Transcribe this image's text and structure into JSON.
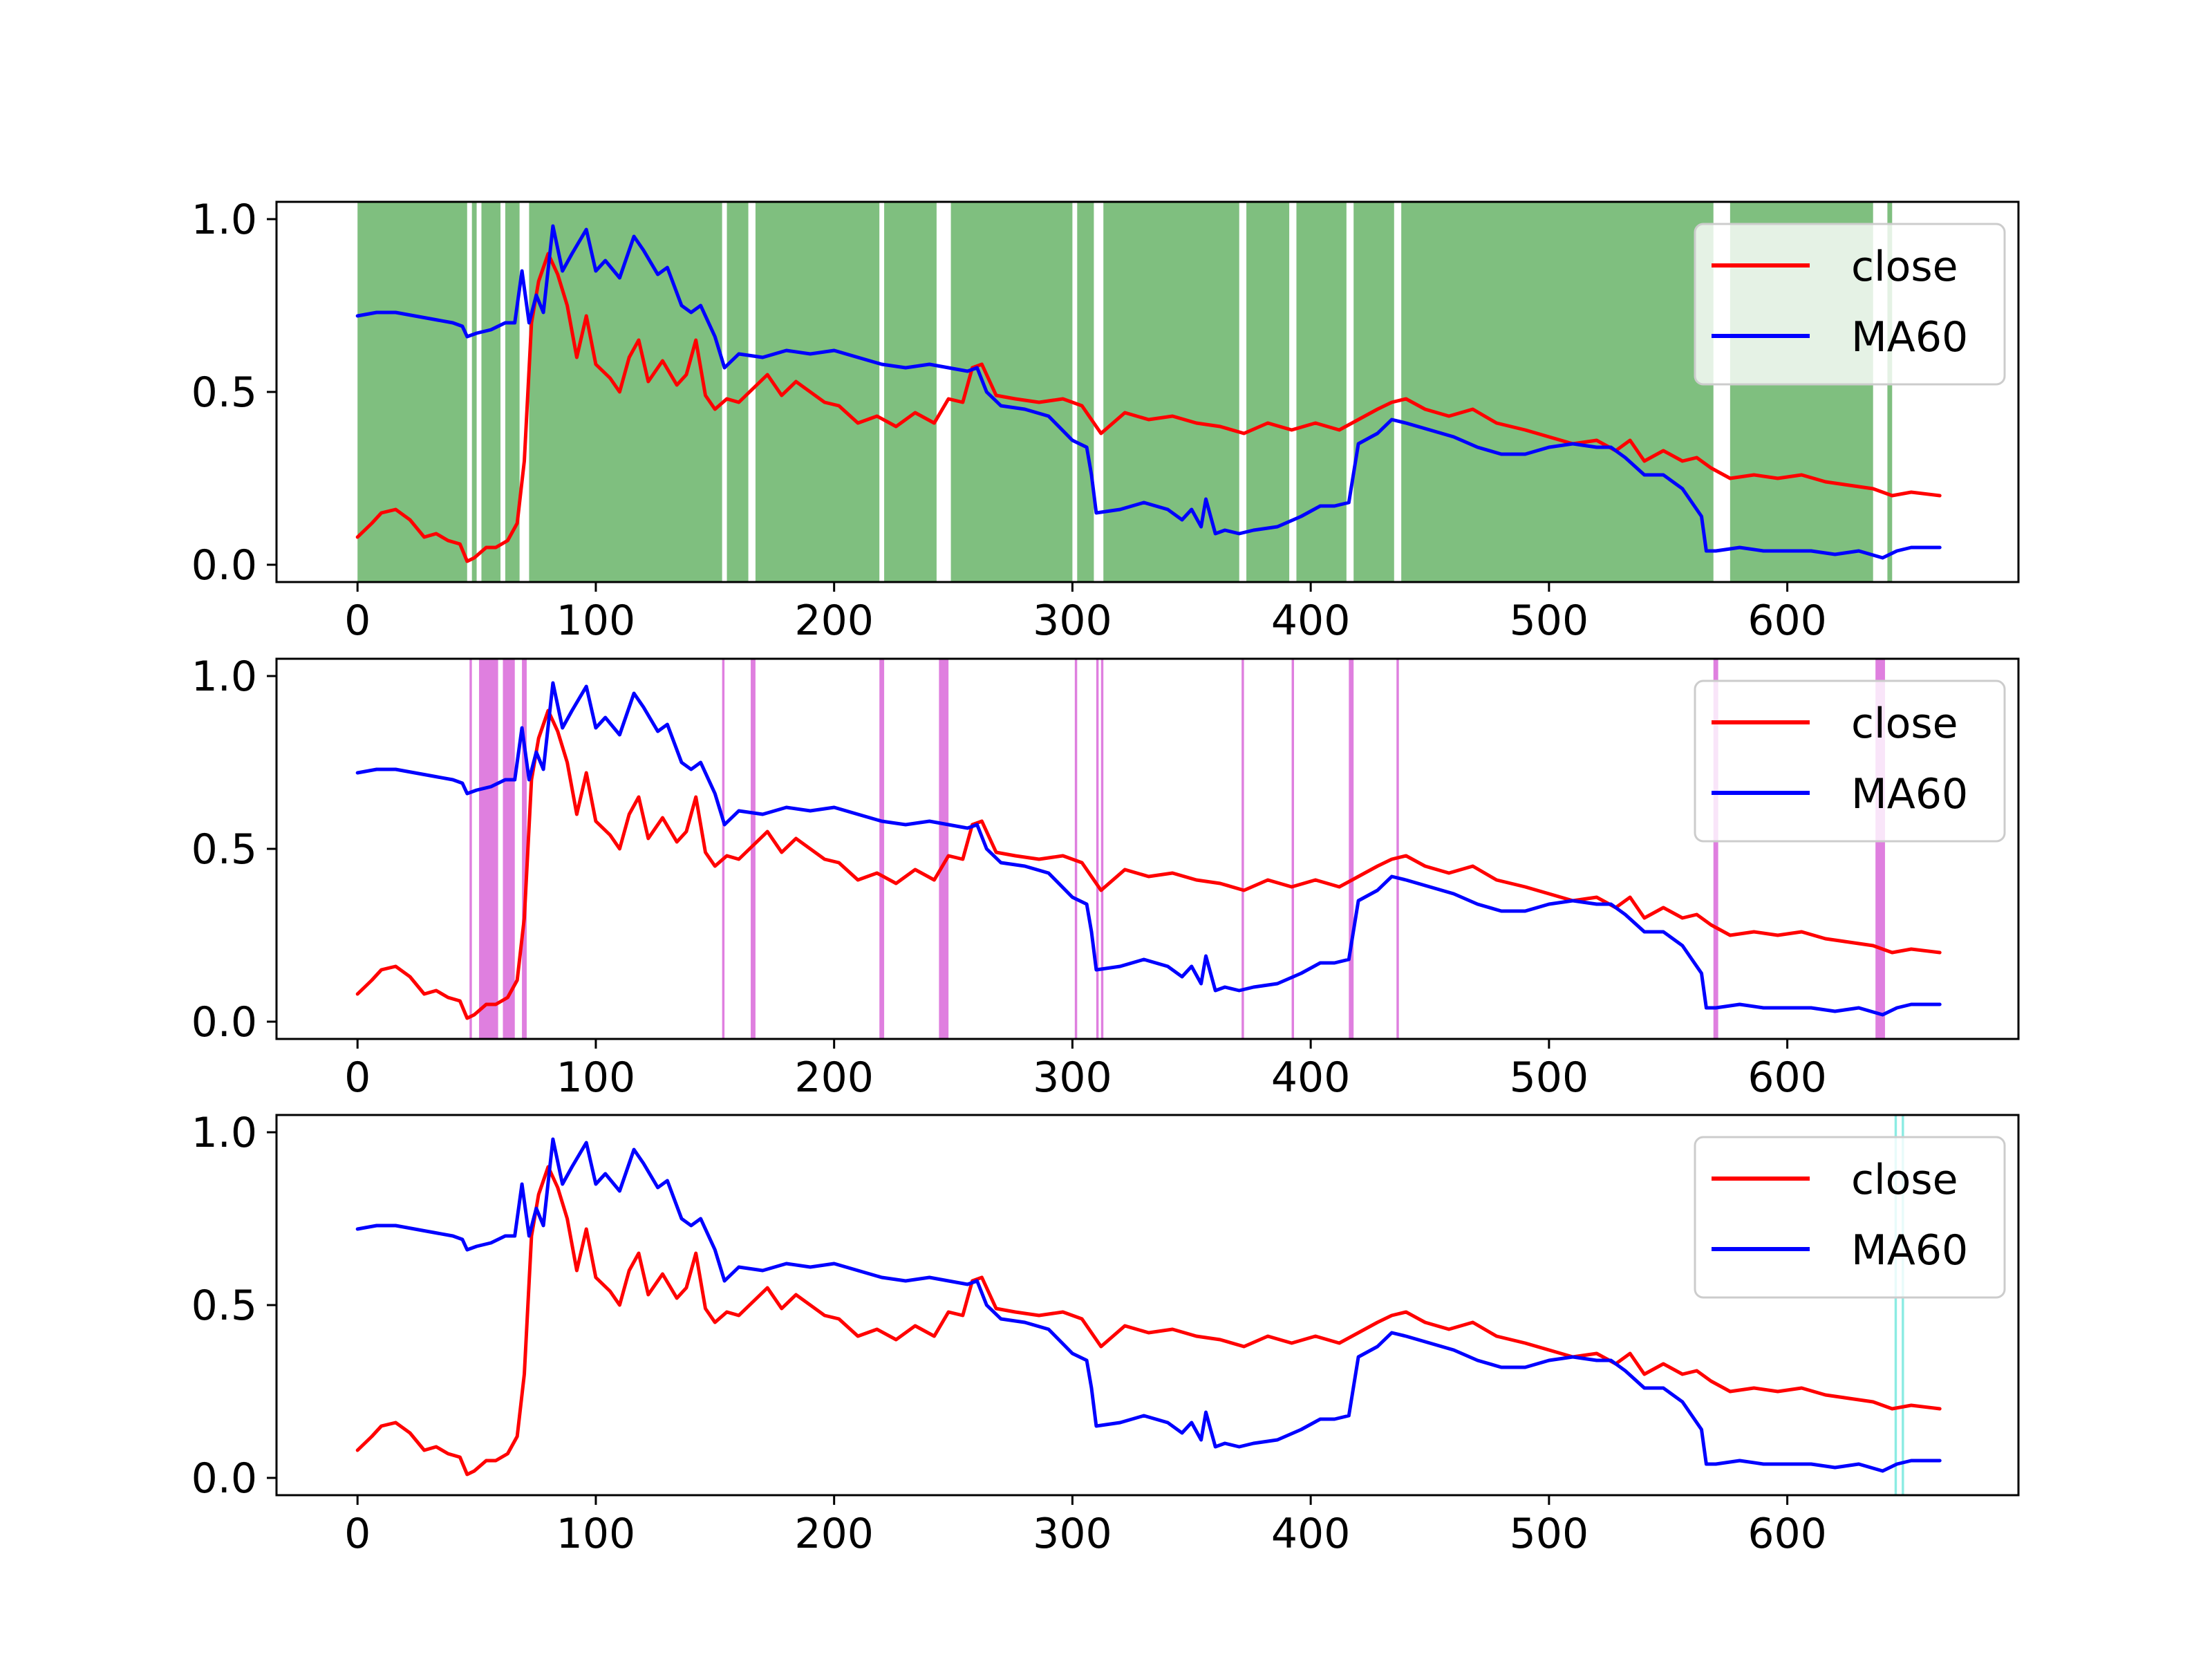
{
  "figure": {
    "background": "#ffffff",
    "layout": "3 vertically stacked subplots sharing the same series"
  },
  "chart_data": [
    {
      "type": "line",
      "title": "",
      "xlabel": "",
      "ylabel": "",
      "xlim": [
        -34,
        697
      ],
      "ylim": [
        -0.05,
        1.05
      ],
      "xticks": [
        0,
        100,
        200,
        300,
        400,
        500,
        600
      ],
      "xtick_labels": [
        "0",
        "100",
        "200",
        "300",
        "400",
        "500",
        "600"
      ],
      "yticks": [
        0.0,
        0.5,
        1.0
      ],
      "ytick_labels": [
        "0.0",
        "0.5",
        "1.0"
      ],
      "grid": false,
      "legend": {
        "placement": "top-right",
        "entries": [
          "close",
          "MA60"
        ]
      },
      "shading": {
        "color": "#008000",
        "opacity": 0.5,
        "spans": [
          [
            0,
            46
          ],
          [
            48,
            50
          ],
          [
            52,
            60
          ],
          [
            62,
            68
          ],
          [
            72,
            153
          ],
          [
            155,
            164
          ],
          [
            167,
            219
          ],
          [
            221,
            243
          ],
          [
            249,
            300
          ],
          [
            302,
            309
          ],
          [
            313,
            370
          ],
          [
            373,
            391
          ],
          [
            394,
            415
          ],
          [
            418,
            435
          ],
          [
            438,
            569
          ],
          [
            576,
            636
          ],
          [
            642,
            644
          ]
        ]
      },
      "series": [
        {
          "name": "close",
          "color": "#ff0000",
          "x": [
            0,
            6,
            10,
            16,
            22,
            28,
            33,
            38,
            43,
            46,
            49,
            54,
            58,
            63,
            67,
            70,
            73,
            76,
            80,
            84,
            88,
            92,
            96,
            100,
            106,
            110,
            114,
            118,
            122,
            128,
            134,
            138,
            142,
            146,
            150,
            155,
            160,
            166,
            172,
            178,
            184,
            190,
            196,
            202,
            210,
            218,
            226,
            234,
            242,
            248,
            254,
            258,
            262,
            268,
            276,
            286,
            296,
            304,
            312,
            322,
            332,
            342,
            352,
            362,
            372,
            382,
            392,
            402,
            412,
            420,
            428,
            434,
            440,
            448,
            458,
            468,
            478,
            490,
            500,
            510,
            520,
            528,
            534,
            540,
            548,
            556,
            562,
            568,
            576,
            586,
            596,
            606,
            616,
            626,
            636,
            644,
            652,
            664
          ],
          "values": [
            0.08,
            0.12,
            0.15,
            0.16,
            0.13,
            0.08,
            0.09,
            0.07,
            0.06,
            0.01,
            0.02,
            0.05,
            0.05,
            0.07,
            0.12,
            0.3,
            0.7,
            0.82,
            0.9,
            0.84,
            0.75,
            0.6,
            0.72,
            0.58,
            0.54,
            0.5,
            0.6,
            0.65,
            0.53,
            0.59,
            0.52,
            0.55,
            0.65,
            0.49,
            0.45,
            0.48,
            0.47,
            0.51,
            0.55,
            0.49,
            0.53,
            0.5,
            0.47,
            0.46,
            0.41,
            0.43,
            0.4,
            0.44,
            0.41,
            0.48,
            0.47,
            0.57,
            0.58,
            0.49,
            0.48,
            0.47,
            0.48,
            0.46,
            0.38,
            0.44,
            0.42,
            0.43,
            0.41,
            0.4,
            0.38,
            0.41,
            0.39,
            0.41,
            0.39,
            0.42,
            0.45,
            0.47,
            0.48,
            0.45,
            0.43,
            0.45,
            0.41,
            0.39,
            0.37,
            0.35,
            0.36,
            0.33,
            0.36,
            0.3,
            0.33,
            0.3,
            0.31,
            0.28,
            0.25,
            0.26,
            0.25,
            0.26,
            0.24,
            0.23,
            0.22,
            0.2,
            0.21,
            0.2
          ]
        },
        {
          "name": "MA60",
          "color": "#0000ff",
          "x": [
            0,
            8,
            16,
            24,
            32,
            40,
            44,
            46,
            50,
            56,
            62,
            66,
            69,
            72,
            75,
            78,
            82,
            86,
            90,
            96,
            100,
            104,
            110,
            116,
            120,
            126,
            130,
            136,
            140,
            144,
            150,
            154,
            160,
            170,
            180,
            190,
            200,
            210,
            220,
            230,
            240,
            248,
            256,
            260,
            264,
            270,
            280,
            290,
            300,
            306,
            308,
            310,
            320,
            330,
            340,
            346,
            350,
            354,
            356,
            360,
            364,
            370,
            376,
            386,
            396,
            404,
            410,
            416,
            420,
            428,
            434,
            440,
            450,
            460,
            470,
            480,
            490,
            500,
            510,
            520,
            526,
            532,
            540,
            548,
            556,
            560,
            564,
            566,
            570,
            580,
            590,
            600,
            610,
            620,
            630,
            640,
            646,
            652,
            664
          ],
          "values": [
            0.72,
            0.73,
            0.73,
            0.72,
            0.71,
            0.7,
            0.69,
            0.66,
            0.67,
            0.68,
            0.7,
            0.7,
            0.85,
            0.7,
            0.78,
            0.73,
            0.98,
            0.85,
            0.9,
            0.97,
            0.85,
            0.88,
            0.83,
            0.95,
            0.91,
            0.84,
            0.86,
            0.75,
            0.73,
            0.75,
            0.66,
            0.57,
            0.61,
            0.6,
            0.62,
            0.61,
            0.62,
            0.6,
            0.58,
            0.57,
            0.58,
            0.57,
            0.56,
            0.57,
            0.5,
            0.46,
            0.45,
            0.43,
            0.36,
            0.34,
            0.26,
            0.15,
            0.16,
            0.18,
            0.16,
            0.13,
            0.16,
            0.11,
            0.19,
            0.09,
            0.1,
            0.09,
            0.1,
            0.11,
            0.14,
            0.17,
            0.17,
            0.18,
            0.35,
            0.38,
            0.42,
            0.41,
            0.39,
            0.37,
            0.34,
            0.32,
            0.32,
            0.34,
            0.35,
            0.34,
            0.34,
            0.31,
            0.26,
            0.26,
            0.22,
            0.18,
            0.14,
            0.04,
            0.04,
            0.05,
            0.04,
            0.04,
            0.04,
            0.03,
            0.04,
            0.02,
            0.04,
            0.05,
            0.05
          ]
        }
      ]
    },
    {
      "type": "line",
      "title": "",
      "xlabel": "",
      "ylabel": "",
      "xlim": [
        -34,
        697
      ],
      "ylim": [
        -0.05,
        1.05
      ],
      "xticks": [
        0,
        100,
        200,
        300,
        400,
        500,
        600
      ],
      "xtick_labels": [
        "0",
        "100",
        "200",
        "300",
        "400",
        "500",
        "600"
      ],
      "yticks": [
        0.0,
        0.5,
        1.0
      ],
      "ytick_labels": [
        "0.0",
        "0.5",
        "1.0"
      ],
      "grid": false,
      "legend": {
        "placement": "top-right",
        "entries": [
          "close",
          "MA60"
        ]
      },
      "shading": {
        "color": "#c000c0",
        "opacity": 0.5,
        "spans": [
          [
            47,
            48
          ],
          [
            51,
            59
          ],
          [
            61,
            66
          ],
          [
            69,
            71
          ],
          [
            153,
            154
          ],
          [
            165,
            167
          ],
          [
            219,
            221
          ],
          [
            244,
            248
          ],
          [
            301,
            302
          ],
          [
            310,
            311
          ],
          [
            312,
            313
          ],
          [
            371,
            372
          ],
          [
            392,
            393
          ],
          [
            416,
            418
          ],
          [
            436,
            437
          ],
          [
            569,
            571
          ],
          [
            637,
            641
          ]
        ]
      },
      "series_ref": "same close and MA60 series as subplot 1"
    },
    {
      "type": "line",
      "title": "",
      "xlabel": "",
      "ylabel": "",
      "xlim": [
        -34,
        697
      ],
      "ylim": [
        -0.05,
        1.05
      ],
      "xticks": [
        0,
        100,
        200,
        300,
        400,
        500,
        600
      ],
      "xtick_labels": [
        "0",
        "100",
        "200",
        "300",
        "400",
        "500",
        "600"
      ],
      "yticks": [
        0.0,
        0.5,
        1.0
      ],
      "ytick_labels": [
        "0.0",
        "0.5",
        "1.0"
      ],
      "grid": false,
      "legend": {
        "placement": "top-right",
        "entries": [
          "close",
          "MA60"
        ]
      },
      "shading": {
        "color": "#40e0d0",
        "opacity": 0.6,
        "spans": [
          [
            645,
            646
          ],
          [
            648,
            649
          ]
        ]
      },
      "series_ref": "same close and MA60 series as subplot 1"
    }
  ]
}
